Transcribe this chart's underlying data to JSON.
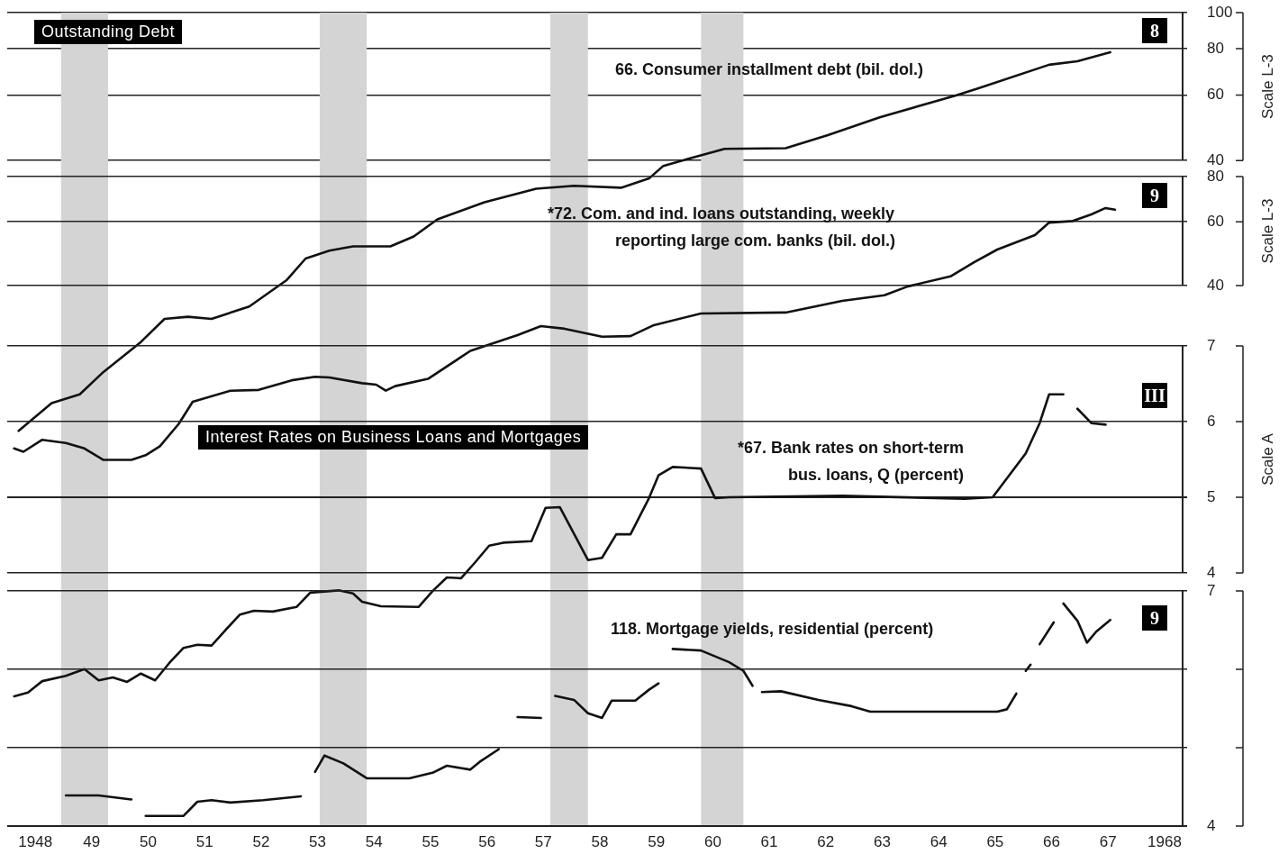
{
  "chart_data": [
    {
      "type": "line",
      "title": "Outstanding Debt",
      "ylabel": "Scale L-3",
      "annotations": [
        "8"
      ],
      "series": [
        {
          "name": "66. Consumer installment debt (bil. dol.)",
          "color": "#111111",
          "x": [
            "1948-03",
            "1948-10",
            "1949-04",
            "1949-09",
            "1950-05",
            "1950-10",
            "1951-03",
            "1951-08",
            "1952-04",
            "1952-12",
            "1953-04",
            "1953-09",
            "1954-02",
            "1954-10",
            "1955-03",
            "1955-08",
            "1956-06",
            "1957-05",
            "1958-01",
            "1958-11",
            "1959-05",
            "1959-08",
            "1959-12",
            "1960-09",
            "1961-10",
            "1962-07",
            "1963-06",
            "1964-10",
            "1965-03",
            "1966-06",
            "1966-12",
            "1967-07"
          ],
          "values": [
            7.5,
            8.9,
            9.4,
            10.8,
            13.0,
            15.0,
            15.2,
            15.0,
            16.2,
            19.1,
            21.8,
            22.9,
            23.5,
            23.5,
            25.0,
            27.8,
            30.9,
            33.6,
            34.2,
            33.8,
            35.8,
            38.7,
            40.0,
            43.0,
            43.2,
            46.8,
            52.3,
            59.8,
            62.6,
            72.4,
            74.0,
            78.2
          ]
        }
      ],
      "xlim": [
        "1948-01-01",
        "1968-11-24"
      ],
      "ylim": [
        4.97,
        100
      ],
      "yticks": [
        40,
        60,
        80,
        100
      ],
      "log": true,
      "grid": "y",
      "tick_labels": "y",
      "marker": "none",
      "line_style": "solid",
      "bands": [
        {
          "axis": "x",
          "from": "1948-12",
          "to": "1949-10",
          "color": "#d4d4d4"
        },
        {
          "axis": "x",
          "from": "1953-07",
          "to": "1954-05",
          "color": "#d4d4d4"
        },
        {
          "axis": "x",
          "from": "1957-08",
          "to": "1958-04",
          "color": "#d4d4d4"
        },
        {
          "axis": "x",
          "from": "1960-04",
          "to": "1961-01",
          "color": "#d4d4d4"
        }
      ]
    },
    {
      "type": "line",
      "ylabel": "Scale L-3",
      "annotations": [
        "9"
      ],
      "series": [
        {
          "name": "*72.  Com. and ind. loans outstanding, weekly reporting large com. banks (bil. dol.)",
          "color": "#111111",
          "x": [
            "1948-02",
            "1948-04",
            "1948-08",
            "1949-01",
            "1949-05",
            "1949-09",
            "1950-03",
            "1950-06",
            "1950-09",
            "1951-01",
            "1951-04",
            "1951-12",
            "1952-06",
            "1953-01",
            "1953-06",
            "1953-09",
            "1954-04",
            "1954-07",
            "1954-09",
            "1954-11",
            "1955-06",
            "1956-03",
            "1957-01",
            "1957-06",
            "1957-11",
            "1958-07",
            "1959-01",
            "1959-06",
            "1960-04",
            "1961-10",
            "1962-10",
            "1963-07",
            "1963-12",
            "1964-09",
            "1965-02",
            "1965-07",
            "1966-03",
            "1966-06",
            "1966-11",
            "1967-03",
            "1967-06",
            "1967-08"
          ],
          "values": [
            14.2,
            13.9,
            15.0,
            14.7,
            14.2,
            13.2,
            13.2,
            13.6,
            14.4,
            16.6,
            19.1,
            20.5,
            20.6,
            21.9,
            22.4,
            22.3,
            21.5,
            21.3,
            20.5,
            21.1,
            22.1,
            26.4,
            29.2,
            30.9,
            30.4,
            28.9,
            29.0,
            31.1,
            33.5,
            33.7,
            36.3,
            37.6,
            39.8,
            42.4,
            46.4,
            50.3,
            55.1,
            59.7,
            60.3,
            62.9,
            65.5,
            64.8
          ]
        }
      ],
      "xlim": [
        "1948-01-01",
        "1968-11-24"
      ],
      "ylim": [
        1.286,
        80
      ],
      "yticks": [
        40,
        60,
        80
      ],
      "log": true,
      "grid": "y",
      "tick_labels": "y",
      "marker": "none",
      "line_style": "solid"
    },
    {
      "type": "line",
      "title": "Interest Rates on Business Loans and Mortgages",
      "ylabel": "Scale A",
      "annotations": [
        "III"
      ],
      "series": [
        {
          "name": "*67. Bank rates on short-term bus. loans, Q (percent)",
          "color": "#111111",
          "x": [
            "1948-02",
            "1948-05",
            "1948-08",
            "1949-01",
            "1949-05",
            "1949-08",
            "1949-11",
            "1950-02",
            "1950-05",
            "1950-08",
            "1950-11",
            "1951-02",
            "1951-05",
            "1951-08",
            "1951-11",
            "1952-02",
            "1952-05",
            "1952-09",
            "1953-02",
            "1953-05",
            "1953-11",
            "1954-02",
            "1954-04",
            "1954-08",
            "1955-04",
            "1955-07",
            "1955-10",
            "1956-01",
            "1956-04",
            "1956-07",
            "1956-10",
            "1957-04",
            "1957-07",
            "1957-10",
            "1958-04",
            "1958-07",
            "1958-10",
            "1959-01",
            "1959-05",
            "1959-07",
            "1959-10",
            "1960-04",
            "1960-07",
            "1960-10",
            "1962-10",
            "1964-12",
            "1965-06",
            "1966-01",
            "1966-04",
            "1966-06",
            "1966-09",
            "1966-11",
            "1966-12",
            "1967-03",
            "1967-06"
          ],
          "values": [
            2.37,
            2.42,
            2.57,
            2.64,
            2.73,
            2.58,
            2.62,
            2.56,
            2.67,
            2.58,
            2.81,
            3.01,
            3.05,
            3.04,
            3.25,
            3.45,
            3.5,
            3.49,
            3.55,
            3.74,
            3.77,
            3.73,
            3.62,
            3.56,
            3.55,
            3.76,
            3.94,
            3.93,
            4.14,
            4.36,
            4.4,
            4.42,
            4.86,
            4.87,
            4.17,
            4.2,
            4.51,
            4.51,
            4.99,
            5.29,
            5.4,
            5.38,
            4.99,
            5.0,
            5.02,
            4.98,
            5.0,
            5.58,
            5.98,
            6.36,
            6.36,
            null,
            6.17,
            5.98,
            5.96
          ]
        }
      ],
      "xlim": [
        "1948-01-01",
        "1968-11-24"
      ],
      "ylim": [
        0.655,
        7
      ],
      "yticks": [
        4,
        5,
        6,
        7
      ],
      "grid": "y",
      "tick_labels": "y",
      "marker": "none",
      "line_style": "solid"
    },
    {
      "type": "line",
      "annotations": [
        "9"
      ],
      "series": [
        {
          "name": "118. Mortgage yields, residential (percent)",
          "color": "#111111",
          "x": [
            "1949-01",
            "1949-08",
            "1950-03",
            "1950-04",
            "1950-06",
            "1951-02",
            "1951-05",
            "1951-08",
            "1951-12",
            "1952-07",
            "1953-03",
            "1953-04",
            "1953-06",
            "1953-08",
            "1953-12",
            "1954-05",
            "1955-02",
            "1955-07",
            "1955-10",
            "1956-03",
            "1956-05",
            "1956-09",
            "1956-11",
            "1957-01",
            "1957-06",
            "1957-07",
            "1957-09",
            "1958-01",
            "1958-04",
            "1958-07",
            "1958-09",
            "1959-02",
            "1959-05",
            "1959-07",
            "1959-08",
            "1959-10",
            "1960-04",
            "1960-10",
            "1961-01",
            "1961-03",
            "1961-04",
            "1961-05",
            "1961-09",
            "1962-05",
            "1962-12",
            "1963-04",
            "1964-07",
            "1965-07",
            "1965-09",
            "1965-11",
            "1965-12",
            "1966-01",
            "1966-02",
            "1966-03",
            "1966-04",
            "1966-07",
            "1966-08",
            "1966-09",
            "1966-12",
            "1967-02",
            "1967-04",
            "1967-07"
          ],
          "values": [
            4.39,
            4.39,
            4.34,
            null,
            4.13,
            4.13,
            4.31,
            4.33,
            4.3,
            4.33,
            4.38,
            null,
            4.69,
            4.9,
            4.8,
            4.61,
            4.61,
            4.68,
            4.77,
            4.72,
            4.82,
            4.98,
            null,
            5.39,
            5.38,
            null,
            5.66,
            5.61,
            5.44,
            5.38,
            5.6,
            5.6,
            5.74,
            5.82,
            null,
            6.26,
            6.24,
            6.09,
            5.98,
            5.79,
            null,
            5.71,
            5.72,
            5.61,
            5.53,
            5.46,
            5.46,
            5.46,
            5.49,
            5.69,
            null,
            5.98,
            6.06,
            null,
            6.32,
            6.6,
            null,
            6.84,
            6.62,
            6.34,
            6.48,
            6.63
          ]
        }
      ],
      "xlim": [
        "1948-01-01",
        "1968-11-24"
      ],
      "xticks": [
        {
          "value": "1948-07-01",
          "label": "1948"
        },
        {
          "value": "1949-07-01",
          "label": "49"
        },
        {
          "value": "1950-07-01",
          "label": "50"
        },
        {
          "value": "1951-07-01",
          "label": "51"
        },
        {
          "value": "1952-07-01",
          "label": "52"
        },
        {
          "value": "1953-07-01",
          "label": "53"
        },
        {
          "value": "1954-07-01",
          "label": "54"
        },
        {
          "value": "1955-07-01",
          "label": "55"
        },
        {
          "value": "1956-07-01",
          "label": "56"
        },
        {
          "value": "1957-07-01",
          "label": "57"
        },
        {
          "value": "1958-07-01",
          "label": "58"
        },
        {
          "value": "1959-07-01",
          "label": "59"
        },
        {
          "value": "1960-07-01",
          "label": "60"
        },
        {
          "value": "1961-07-01",
          "label": "61"
        },
        {
          "value": "1962-07-01",
          "label": "62"
        },
        {
          "value": "1963-07-01",
          "label": "63"
        },
        {
          "value": "1964-07-01",
          "label": "64"
        },
        {
          "value": "1965-07-01",
          "label": "65"
        },
        {
          "value": "1966-07-01",
          "label": "66"
        },
        {
          "value": "1967-07-01",
          "label": "67"
        },
        {
          "value": "1968-07-01",
          "label": "1968"
        }
      ],
      "ylim": [
        4,
        7
      ],
      "yticks": [
        4,
        {
          "value": 5,
          "label": null
        },
        {
          "value": 6,
          "label": null
        },
        7
      ],
      "grid": "y",
      "marker": "none",
      "line_style": "solid"
    }
  ]
}
